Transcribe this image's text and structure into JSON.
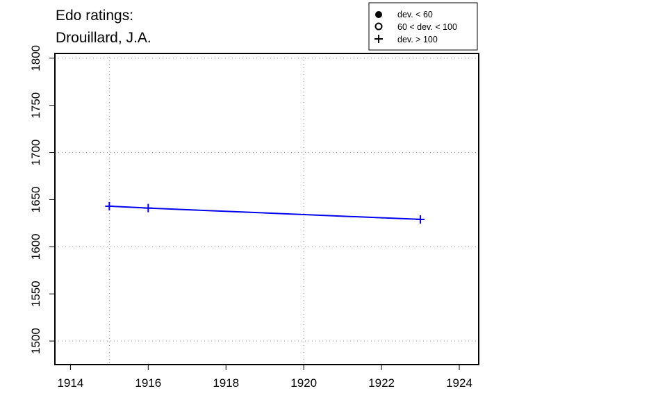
{
  "chart_data": {
    "type": "line",
    "title_lines": [
      "Edo ratings:",
      "Drouillard, J.A."
    ],
    "xlabel": "",
    "ylabel": "",
    "xlim": [
      1913.6,
      1924.5
    ],
    "ylim": [
      1475,
      1805
    ],
    "x_ticks": [
      1914,
      1916,
      1918,
      1920,
      1922,
      1924
    ],
    "y_ticks": [
      1500,
      1550,
      1600,
      1650,
      1700,
      1750,
      1800
    ],
    "x_grid": [
      1915,
      1920
    ],
    "y_grid": [
      1500,
      1600,
      1700,
      1800
    ],
    "grid": "dotted",
    "legend_position": "top-right",
    "series": [
      {
        "color": "#0000ee",
        "marker": "plus",
        "points": [
          {
            "x": 1915,
            "y": 1643
          },
          {
            "x": 1916,
            "y": 1641
          },
          {
            "x": 1923,
            "y": 1629
          }
        ]
      }
    ],
    "legend": [
      {
        "symbol": "filled-circle",
        "label": "dev. < 60"
      },
      {
        "symbol": "open-circle",
        "label": "60 < dev. < 100"
      },
      {
        "symbol": "plus",
        "label": "dev. > 100"
      }
    ]
  }
}
